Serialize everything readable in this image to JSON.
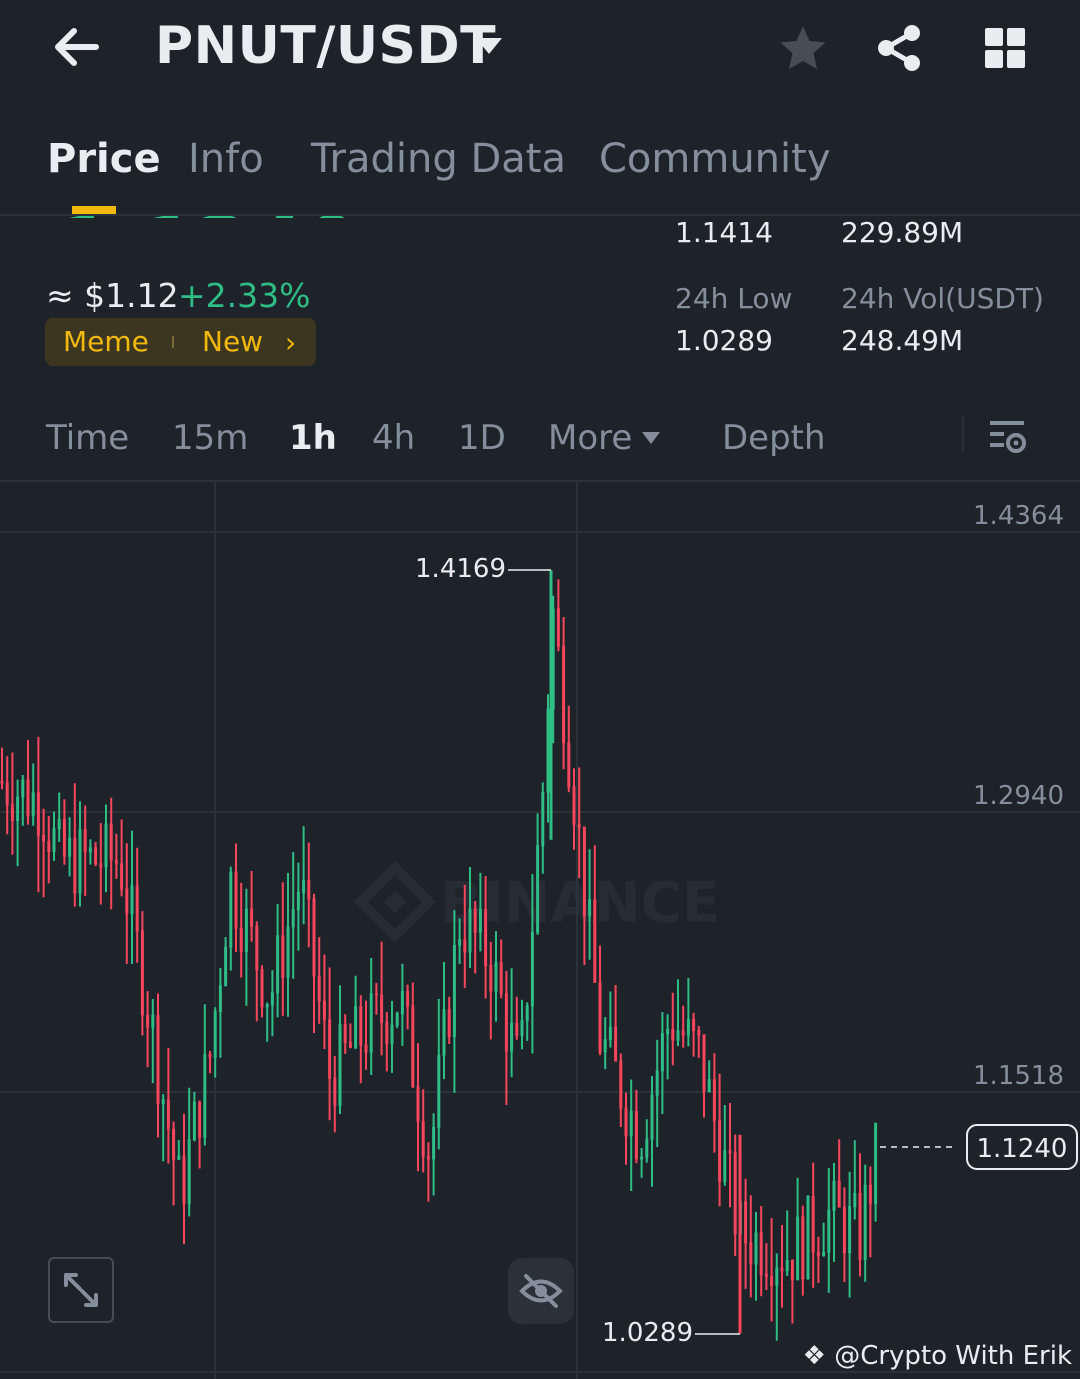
{
  "header": {
    "pair": "PNUT/USDT",
    "icons": [
      "back-arrow-icon",
      "caret-down-icon",
      "star-icon",
      "share-icon",
      "grid-icon"
    ]
  },
  "tabs": [
    {
      "label": "Price",
      "active": true
    },
    {
      "label": "Info",
      "active": false
    },
    {
      "label": "Trading Data",
      "active": false
    },
    {
      "label": "Community",
      "active": false
    }
  ],
  "ticker": {
    "last_price": "1.1240",
    "approx_usd": "≈ $1.12",
    "change": "+2.33%",
    "tags": [
      "Meme",
      "New"
    ],
    "high_value": "1.1414",
    "volume_base": "229.89M",
    "low_label": "24h Low",
    "low_value": "1.0289",
    "vol_label": "24h Vol(USDT)",
    "vol_value": "248.49M"
  },
  "intervals": [
    {
      "label": "Time",
      "active": false
    },
    {
      "label": "15m",
      "active": false
    },
    {
      "label": "1h",
      "active": true
    },
    {
      "label": "4h",
      "active": false
    },
    {
      "label": "1D",
      "active": false
    },
    {
      "label": "More",
      "active": false
    },
    {
      "label": "Depth",
      "active": false
    }
  ],
  "colors": {
    "bg": "#1e2329",
    "up": "#2ebd85",
    "down": "#f6465d",
    "muted": "#848e9c",
    "accent": "#f0b90b"
  },
  "chart_data": {
    "type": "candlestick",
    "y_ticks": [
      "1.4364",
      "1.2940",
      "1.1518"
    ],
    "current_price": "1.1240",
    "high_annotation": "1.4169",
    "low_annotation": "1.0289",
    "watermark": "BINANCE",
    "ylim": [
      1.0,
      1.46
    ]
  },
  "footer": {
    "credit": "@Crypto With Erik"
  }
}
